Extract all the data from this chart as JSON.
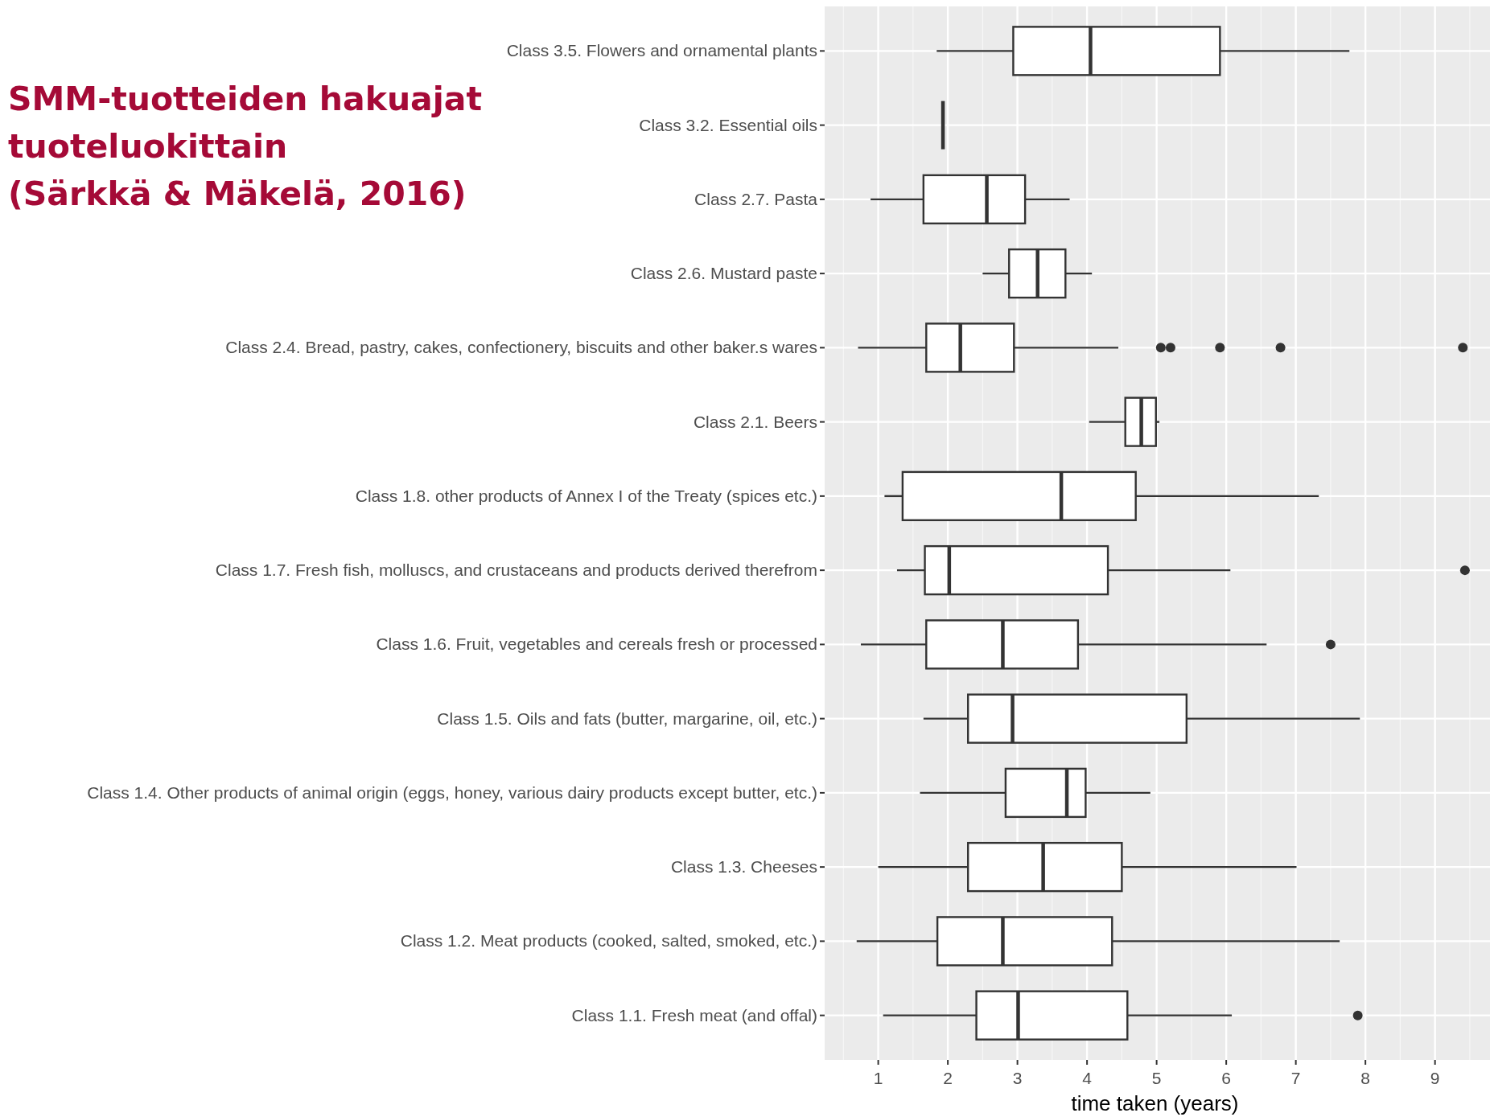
{
  "chart_data": {
    "type": "box",
    "orientation": "horizontal",
    "title": "SMM-tuotteiden hakuajat\ntuoteluokittain\n(Särkkä & Mäkelä, 2016)",
    "xlabel": "time taken (years)",
    "grid": true,
    "xlim": [
      0.23,
      9.79
    ],
    "xticks": [
      1,
      2,
      3,
      4,
      5,
      6,
      7,
      8,
      9
    ],
    "categories": [
      "Class 3.5. Flowers and ornamental plants",
      "Class 3.2. Essential oils",
      "Class 2.7. Pasta",
      "Class 2.6. Mustard paste",
      "Class 2.4. Bread, pastry, cakes, confectionery, biscuits and other baker.s wares",
      "Class 2.1. Beers",
      "Class 1.8. other products of Annex I of the Treaty (spices etc.)",
      "Class 1.7. Fresh fish, molluscs, and crustaceans and products derived therefrom",
      "Class 1.6. Fruit, vegetables and cereals fresh or processed",
      "Class 1.5. Oils and fats (butter, margarine, oil, etc.)",
      "Class 1.4. Other products of animal origin (eggs, honey, various dairy products except butter, etc.)",
      "Class 1.3. Cheeses",
      "Class 1.2. Meat products (cooked, salted, smoked, etc.)",
      "Class 1.1. Fresh meat (and offal)"
    ],
    "boxes": [
      {
        "low": 1.84,
        "q1": 2.94,
        "median": 4.05,
        "q3": 5.91,
        "high": 7.77
      },
      {
        "low": 1.93,
        "q1": 1.93,
        "median": 1.93,
        "q3": 1.93,
        "high": 1.93
      },
      {
        "low": 0.89,
        "q1": 1.65,
        "median": 2.56,
        "q3": 3.11,
        "high": 3.75
      },
      {
        "low": 2.5,
        "q1": 2.88,
        "median": 3.29,
        "q3": 3.69,
        "high": 4.07
      },
      {
        "low": 0.71,
        "q1": 1.69,
        "median": 2.18,
        "q3": 2.95,
        "high": 4.45,
        "outliers": [
          5.06,
          5.2,
          5.91,
          6.78,
          9.4
        ]
      },
      {
        "low": 4.03,
        "q1": 4.55,
        "median": 4.78,
        "q3": 4.99,
        "high": 5.04
      },
      {
        "low": 1.09,
        "q1": 1.35,
        "median": 3.63,
        "q3": 4.7,
        "high": 7.33
      },
      {
        "low": 1.27,
        "q1": 1.67,
        "median": 2.02,
        "q3": 4.3,
        "high": 6.06,
        "outliers": [
          9.43
        ]
      },
      {
        "low": 0.75,
        "q1": 1.69,
        "median": 2.79,
        "q3": 3.87,
        "high": 6.58,
        "outliers": [
          7.5
        ]
      },
      {
        "low": 1.65,
        "q1": 2.29,
        "median": 2.93,
        "q3": 5.43,
        "high": 7.92
      },
      {
        "low": 1.6,
        "q1": 2.83,
        "median": 3.71,
        "q3": 3.98,
        "high": 4.91
      },
      {
        "low": 1.0,
        "q1": 2.29,
        "median": 3.37,
        "q3": 4.5,
        "high": 7.01
      },
      {
        "low": 0.69,
        "q1": 1.85,
        "median": 2.79,
        "q3": 4.36,
        "high": 7.63
      },
      {
        "low": 1.07,
        "q1": 2.41,
        "median": 3.01,
        "q3": 4.58,
        "high": 6.08,
        "outliers": [
          7.89
        ]
      }
    ]
  }
}
